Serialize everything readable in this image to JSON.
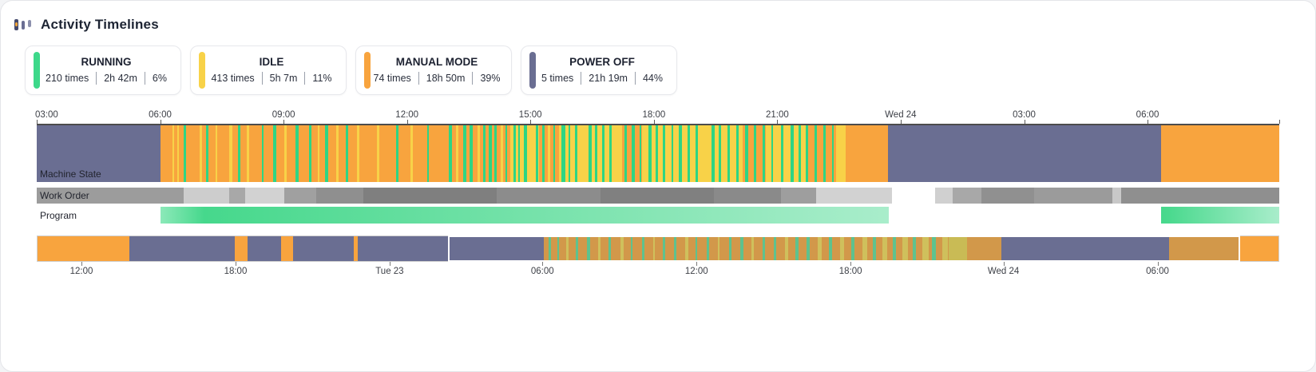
{
  "header": {
    "title": "Activity Timelines"
  },
  "legend": [
    {
      "state": "RUNNING",
      "color": "#3dd88a",
      "stats": [
        "210 times",
        "2h 42m",
        "6%"
      ]
    },
    {
      "state": "IDLE",
      "color": "#f8d248",
      "stats": [
        "413 times",
        "5h 7m",
        "11%"
      ]
    },
    {
      "state": "MANUAL MODE",
      "color": "#f8a43e",
      "stats": [
        "74 times",
        "18h 50m",
        "39%"
      ]
    },
    {
      "state": "POWER OFF",
      "color": "#6a6e92",
      "stats": [
        "5 times",
        "21h 19m",
        "44%"
      ]
    }
  ],
  "chart_data": {
    "type": "timeline",
    "legend_position": "top",
    "colors": {
      "running": "#2ed584",
      "idle": "#f8d248",
      "manual": "#f8a43e",
      "off": "#6a6e92",
      "running_dim": "#5ec28e",
      "idle_dim": "#cfc05c",
      "manual_dim": "#d2984a",
      "olive": "#c9bb55"
    },
    "main_axis": {
      "ticks": [
        {
          "label": "03:00",
          "pct": 0
        },
        {
          "label": "06:00",
          "pct": 9.93
        },
        {
          "label": "09:00",
          "pct": 19.87
        },
        {
          "label": "12:00",
          "pct": 29.8
        },
        {
          "label": "15:00",
          "pct": 39.73
        },
        {
          "label": "18:00",
          "pct": 49.67
        },
        {
          "label": "21:00",
          "pct": 59.6
        },
        {
          "label": "Wed 24",
          "pct": 69.53
        },
        {
          "label": "03:00",
          "pct": 79.47
        },
        {
          "label": "06:00",
          "pct": 89.4
        }
      ],
      "end_tick_pct": 100
    },
    "rows": {
      "machine_state": {
        "label": "Machine State",
        "base": [
          {
            "s": 0,
            "e": 9.93,
            "c": "off"
          },
          {
            "s": 9.93,
            "e": 38.1,
            "c": "manual"
          },
          {
            "s": 38.1,
            "e": 40.4,
            "c": "idle"
          },
          {
            "s": 40.4,
            "e": 42.0,
            "c": "manual"
          },
          {
            "s": 42.0,
            "e": 47.1,
            "c": "idle"
          },
          {
            "s": 47.1,
            "e": 48.7,
            "c": "manual"
          },
          {
            "s": 48.7,
            "e": 56.8,
            "c": "idle"
          },
          {
            "s": 56.8,
            "e": 58.7,
            "c": "manual"
          },
          {
            "s": 58.7,
            "e": 62.0,
            "c": "idle"
          },
          {
            "s": 62.0,
            "e": 64.3,
            "c": "manual"
          },
          {
            "s": 64.3,
            "e": 65.1,
            "c": "idle"
          },
          {
            "s": 65.1,
            "e": 68.5,
            "c": "manual"
          },
          {
            "s": 68.5,
            "e": 90.5,
            "c": "off"
          },
          {
            "s": 90.5,
            "e": 100,
            "c": "manual"
          }
        ],
        "stripes": [
          [
            10.9,
            0.18,
            "idle"
          ],
          [
            11.3,
            0.14,
            "idle"
          ],
          [
            11.85,
            0.18,
            "running"
          ],
          [
            13.1,
            0.22,
            "idle"
          ],
          [
            13.62,
            0.18,
            "running"
          ],
          [
            14.4,
            0.14,
            "idle"
          ],
          [
            15.5,
            0.26,
            "idle"
          ],
          [
            16.2,
            0.18,
            "running"
          ],
          [
            16.9,
            0.22,
            "idle"
          ],
          [
            18.1,
            0.14,
            "running"
          ],
          [
            19.0,
            0.26,
            "running"
          ],
          [
            19.95,
            0.18,
            "idle"
          ],
          [
            20.85,
            0.22,
            "running"
          ],
          [
            21.9,
            0.18,
            "running"
          ],
          [
            22.6,
            0.18,
            "idle"
          ],
          [
            23.2,
            0.26,
            "running"
          ],
          [
            24.1,
            0.18,
            "idle"
          ],
          [
            24.85,
            0.22,
            "running"
          ],
          [
            25.8,
            0.18,
            "idle"
          ],
          [
            27.4,
            0.18,
            "idle"
          ],
          [
            28.9,
            0.22,
            "running"
          ],
          [
            30.1,
            0.16,
            "idle"
          ],
          [
            31.4,
            0.18,
            "running"
          ],
          [
            33.15,
            0.28,
            "running"
          ],
          [
            33.75,
            0.2,
            "idle"
          ],
          [
            34.3,
            0.26,
            "running"
          ],
          [
            34.85,
            0.22,
            "running"
          ],
          [
            35.5,
            0.16,
            "idle"
          ],
          [
            35.95,
            0.2,
            "running"
          ],
          [
            36.4,
            0.24,
            "running"
          ],
          [
            36.85,
            0.18,
            "running"
          ],
          [
            37.35,
            0.2,
            "idle"
          ],
          [
            37.7,
            0.18,
            "running"
          ],
          [
            38.35,
            0.2,
            "running"
          ],
          [
            38.75,
            0.14,
            "running"
          ],
          [
            39.2,
            0.25,
            "running"
          ],
          [
            39.7,
            0.15,
            "idle"
          ],
          [
            40.15,
            0.2,
            "running"
          ],
          [
            40.7,
            0.16,
            "running"
          ],
          [
            41.1,
            0.22,
            "idle"
          ],
          [
            41.55,
            0.18,
            "running"
          ],
          [
            42.25,
            0.3,
            "running"
          ],
          [
            42.8,
            0.16,
            "running"
          ],
          [
            43.3,
            0.2,
            "running"
          ],
          [
            43.9,
            0.14,
            "idle"
          ],
          [
            44.4,
            0.25,
            "running"
          ],
          [
            44.95,
            0.18,
            "running"
          ],
          [
            45.5,
            0.2,
            "running"
          ],
          [
            46.1,
            0.15,
            "running"
          ],
          [
            46.6,
            0.2,
            "idle"
          ],
          [
            47.3,
            0.18,
            "running"
          ],
          [
            47.9,
            0.22,
            "running"
          ],
          [
            48.5,
            0.15,
            "running"
          ],
          [
            49.2,
            0.28,
            "running"
          ],
          [
            49.8,
            0.18,
            "running"
          ],
          [
            50.4,
            0.2,
            "running"
          ],
          [
            51.1,
            0.15,
            "running"
          ],
          [
            51.7,
            0.25,
            "running"
          ],
          [
            52.4,
            0.18,
            "running"
          ],
          [
            53.0,
            0.2,
            "running"
          ],
          [
            53.7,
            0.15,
            "idle"
          ],
          [
            54.3,
            0.25,
            "running"
          ],
          [
            54.9,
            0.18,
            "running"
          ],
          [
            55.6,
            0.2,
            "running"
          ],
          [
            56.3,
            0.16,
            "running"
          ],
          [
            57.0,
            0.25,
            "running"
          ],
          [
            57.7,
            0.18,
            "running"
          ],
          [
            58.4,
            0.2,
            "running"
          ],
          [
            59.1,
            0.15,
            "running"
          ],
          [
            59.9,
            0.2,
            "running"
          ],
          [
            60.7,
            0.25,
            "running"
          ],
          [
            61.3,
            0.18,
            "running"
          ],
          [
            61.9,
            0.2,
            "running"
          ],
          [
            62.6,
            0.16,
            "running"
          ],
          [
            63.3,
            0.2,
            "running"
          ],
          [
            64.0,
            0.14,
            "running"
          ]
        ]
      },
      "work_order": {
        "label": "Work Order",
        "segments": [
          {
            "s": 0,
            "e": 11.8,
            "color": "#9c9c9c"
          },
          {
            "s": 11.8,
            "e": 15.5,
            "color": "#cdcdcd"
          },
          {
            "s": 15.5,
            "e": 16.8,
            "color": "#a8a8a8"
          },
          {
            "s": 16.8,
            "e": 19.9,
            "color": "#d2d2d2"
          },
          {
            "s": 19.9,
            "e": 22.5,
            "color": "#a0a0a0"
          },
          {
            "s": 22.5,
            "e": 26.3,
            "color": "#8f8f8f"
          },
          {
            "s": 26.3,
            "e": 37.0,
            "color": "#7f7f7f"
          },
          {
            "s": 37.0,
            "e": 45.4,
            "color": "#8c8c8c"
          },
          {
            "s": 45.4,
            "e": 54.5,
            "color": "#808080"
          },
          {
            "s": 54.5,
            "e": 59.9,
            "color": "#8a8a8a"
          },
          {
            "s": 59.9,
            "e": 62.7,
            "color": "#9e9e9e"
          },
          {
            "s": 62.7,
            "e": 68.8,
            "color": "#d2d2d2"
          },
          {
            "s": 72.3,
            "e": 73.7,
            "color": "#d0d0d0"
          },
          {
            "s": 73.7,
            "e": 76.0,
            "color": "#a8a8a8"
          },
          {
            "s": 76.0,
            "e": 80.3,
            "color": "#909090"
          },
          {
            "s": 80.3,
            "e": 86.6,
            "color": "#9b9b9b"
          },
          {
            "s": 86.6,
            "e": 87.3,
            "color": "#c8c8c8"
          },
          {
            "s": 87.3,
            "e": 100,
            "color": "#8f8f8f"
          }
        ]
      },
      "program": {
        "label": "Program",
        "segments": [
          {
            "s": 9.93,
            "e": 68.6,
            "from": "#8ce9b9",
            "mid": "#46d88c",
            "to": "#a9edcb"
          },
          {
            "s": 90.5,
            "e": 100,
            "from": "#46d88c",
            "mid": "#4ad98e",
            "to": "#a9edcb"
          }
        ]
      }
    },
    "overview": {
      "base": [
        {
          "s": 0,
          "e": 7.4,
          "c": "manual"
        },
        {
          "s": 7.4,
          "e": 15.9,
          "c": "off"
        },
        {
          "s": 15.9,
          "e": 16.9,
          "c": "manual"
        },
        {
          "s": 16.9,
          "e": 19.6,
          "c": "off"
        },
        {
          "s": 19.6,
          "e": 20.6,
          "c": "manual"
        },
        {
          "s": 20.6,
          "e": 25.5,
          "c": "off"
        },
        {
          "s": 25.5,
          "e": 25.8,
          "c": "manual"
        },
        {
          "s": 25.8,
          "e": 40.8,
          "c": "off"
        },
        {
          "s": 40.8,
          "e": 73.4,
          "c": "manual_dim"
        },
        {
          "s": 73.4,
          "e": 74.9,
          "c": "olive"
        },
        {
          "s": 74.9,
          "e": 77.7,
          "c": "manual_dim"
        },
        {
          "s": 77.7,
          "e": 91.2,
          "c": "off"
        },
        {
          "s": 91.2,
          "e": 96.9,
          "c": "manual_dim"
        },
        {
          "s": 96.9,
          "e": 100,
          "c": "manual"
        }
      ],
      "stripes": [
        [
          41.2,
          0.2,
          "running_dim"
        ],
        [
          41.9,
          0.15,
          "running_dim"
        ],
        [
          42.6,
          0.2,
          "idle_dim"
        ],
        [
          43.4,
          0.15,
          "running_dim"
        ],
        [
          44.3,
          0.2,
          "running_dim"
        ],
        [
          45.2,
          0.15,
          "idle_dim"
        ],
        [
          46.0,
          0.2,
          "running_dim"
        ],
        [
          47.0,
          0.25,
          "idle_dim"
        ],
        [
          47.8,
          0.15,
          "running_dim"
        ],
        [
          48.7,
          0.2,
          "running_dim"
        ],
        [
          49.6,
          0.15,
          "idle_dim"
        ],
        [
          50.4,
          0.2,
          "running_dim"
        ],
        [
          51.3,
          0.15,
          "running_dim"
        ],
        [
          52.2,
          0.25,
          "idle_dim"
        ],
        [
          53.0,
          0.15,
          "running_dim"
        ],
        [
          53.9,
          0.2,
          "running_dim"
        ],
        [
          54.8,
          0.15,
          "idle_dim"
        ],
        [
          55.7,
          0.2,
          "running_dim"
        ],
        [
          56.6,
          0.3,
          "running_dim"
        ],
        [
          57.5,
          0.2,
          "idle_dim"
        ],
        [
          58.4,
          0.25,
          "running_dim"
        ],
        [
          59.3,
          0.2,
          "running_dim"
        ],
        [
          60.2,
          0.3,
          "idle_dim"
        ],
        [
          61.1,
          0.2,
          "running_dim"
        ],
        [
          62.0,
          0.25,
          "running_dim"
        ],
        [
          62.9,
          0.3,
          "idle_dim"
        ],
        [
          63.8,
          0.25,
          "running_dim"
        ],
        [
          64.7,
          0.3,
          "idle_dim"
        ],
        [
          65.6,
          0.25,
          "running_dim"
        ],
        [
          66.5,
          0.35,
          "idle_dim"
        ],
        [
          67.3,
          0.3,
          "running_dim"
        ],
        [
          68.1,
          0.4,
          "idle_dim"
        ],
        [
          68.9,
          0.3,
          "running_dim"
        ],
        [
          69.7,
          0.45,
          "idle_dim"
        ],
        [
          70.5,
          0.3,
          "running_dim"
        ],
        [
          71.3,
          0.5,
          "idle_dim"
        ],
        [
          72.1,
          0.3,
          "running_dim"
        ],
        [
          72.9,
          0.45,
          "idle_dim"
        ]
      ],
      "selection": {
        "s": 33.1,
        "e": 96.9
      },
      "axis_ticks": [
        {
          "label": "12:00",
          "pct": 3.6
        },
        {
          "label": "18:00",
          "pct": 16.0
        },
        {
          "label": "Tue 23",
          "pct": 28.4
        },
        {
          "label": "06:00",
          "pct": 40.7
        },
        {
          "label": "12:00",
          "pct": 53.1
        },
        {
          "label": "18:00",
          "pct": 65.5
        },
        {
          "label": "Wed 24",
          "pct": 77.8
        },
        {
          "label": "06:00",
          "pct": 90.2
        }
      ]
    }
  }
}
